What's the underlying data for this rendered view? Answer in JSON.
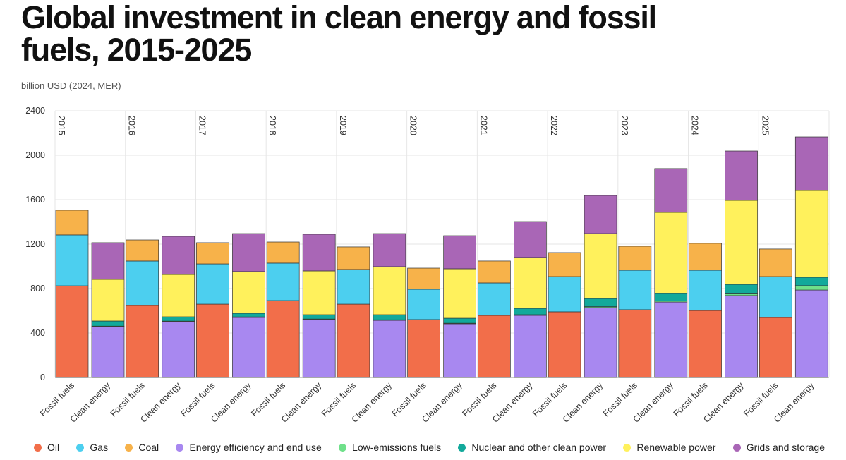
{
  "chart_data": {
    "type": "stacked-bar",
    "title": "Global investment in clean energy and fossil fuels, 2015-2025",
    "subtitle": "billion USD (2024, MER)",
    "groups": [
      "2015",
      "2016",
      "2017",
      "2018",
      "2019",
      "2020",
      "2021",
      "2022",
      "2023",
      "2024",
      "2025"
    ],
    "categories": [
      "Fossil fuels",
      "Clean energy",
      "Fossil fuels",
      "Clean energy",
      "Fossil fuels",
      "Clean energy",
      "Fossil fuels",
      "Clean energy",
      "Fossil fuels",
      "Clean energy",
      "Fossil fuels",
      "Clean energy",
      "Fossil fuels",
      "Clean energy",
      "Fossil fuels",
      "Clean energy",
      "Fossil fuels",
      "Clean energy",
      "Fossil fuels",
      "Clean energy",
      "Fossil fuels",
      "Clean energy"
    ],
    "series": [
      {
        "name": "Oil",
        "color": "#f26e4a",
        "values": [
          825,
          0,
          648,
          0,
          660,
          0,
          692,
          0,
          660,
          0,
          521,
          0,
          559,
          0,
          591,
          0,
          610,
          0,
          603,
          0,
          540,
          0
        ]
      },
      {
        "name": "Gas",
        "color": "#4ccfef",
        "values": [
          458,
          0,
          400,
          0,
          362,
          0,
          337,
          0,
          312,
          0,
          273,
          0,
          292,
          0,
          317,
          0,
          355,
          0,
          362,
          0,
          368,
          0
        ]
      },
      {
        "name": "Coal",
        "color": "#f7b24a",
        "values": [
          222,
          0,
          190,
          0,
          191,
          0,
          190,
          0,
          203,
          0,
          190,
          0,
          197,
          0,
          216,
          0,
          216,
          0,
          242,
          0,
          248,
          0
        ]
      },
      {
        "name": "Energy efficiency and end use",
        "color": "#a888f0",
        "values": [
          0,
          457,
          0,
          502,
          0,
          540,
          0,
          521,
          0,
          514,
          0,
          483,
          0,
          559,
          0,
          629,
          0,
          679,
          0,
          737,
          0,
          787
        ]
      },
      {
        "name": "Low-emissions fuels",
        "color": "#6fe08a",
        "values": [
          0,
          5,
          0,
          5,
          0,
          5,
          0,
          5,
          0,
          5,
          0,
          5,
          0,
          6,
          0,
          8,
          0,
          10,
          0,
          15,
          0,
          39
        ]
      },
      {
        "name": "Nuclear and other clean power",
        "color": "#12a99b",
        "values": [
          0,
          46,
          0,
          39,
          0,
          33,
          0,
          39,
          0,
          46,
          0,
          45,
          0,
          57,
          0,
          74,
          0,
          67,
          0,
          86,
          0,
          76
        ]
      },
      {
        "name": "Renewable power",
        "color": "#fff15c",
        "values": [
          0,
          375,
          0,
          381,
          0,
          375,
          0,
          394,
          0,
          432,
          0,
          445,
          0,
          458,
          0,
          584,
          0,
          730,
          0,
          756,
          0,
          781
        ]
      },
      {
        "name": "Grids and storage",
        "color": "#a966b6",
        "values": [
          0,
          330,
          0,
          343,
          0,
          342,
          0,
          330,
          0,
          298,
          0,
          298,
          0,
          323,
          0,
          343,
          0,
          394,
          0,
          444,
          0,
          482
        ]
      }
    ],
    "ylim": [
      0,
      2400
    ],
    "yticks": [
      0,
      400,
      800,
      1200,
      1600,
      2000,
      2400
    ],
    "grid": true
  }
}
